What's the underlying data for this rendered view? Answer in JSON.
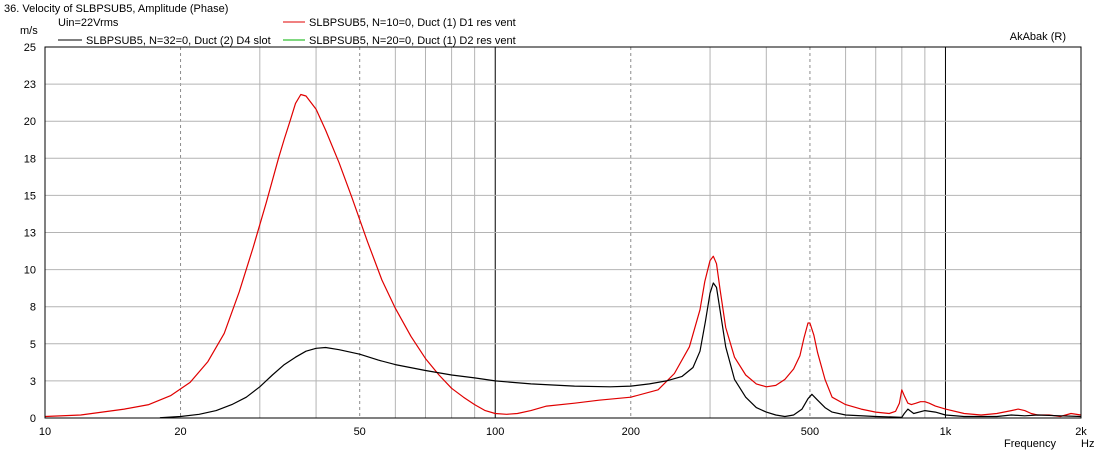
{
  "chart_data": {
    "type": "line",
    "title": "36. Velocity of SLBPSUB5, Amplitude (Phase)",
    "info": "Uin=22Vrms",
    "brand": "AkAbak (R)",
    "ylabel": "m/s",
    "xlabel": "Frequency",
    "xunit": "Hz",
    "x_scale": "log",
    "xlim": [
      10,
      2000
    ],
    "ylim": [
      0,
      25
    ],
    "grid": true,
    "legend_position": "top-left",
    "x_ticks": [
      {
        "value": 10,
        "label": "10"
      },
      {
        "value": 20,
        "label": "20"
      },
      {
        "value": 50,
        "label": "50"
      },
      {
        "value": 100,
        "label": "100"
      },
      {
        "value": 200,
        "label": "200"
      },
      {
        "value": 500,
        "label": "500"
      },
      {
        "value": 1000,
        "label": "1k"
      },
      {
        "value": 2000,
        "label": "2k"
      }
    ],
    "y_ticks": [
      {
        "value": 0,
        "label": "0"
      },
      {
        "value": 2.5,
        "label": "3"
      },
      {
        "value": 5,
        "label": "5"
      },
      {
        "value": 7.5,
        "label": "8"
      },
      {
        "value": 10,
        "label": "10"
      },
      {
        "value": 12.5,
        "label": "13"
      },
      {
        "value": 15,
        "label": "15"
      },
      {
        "value": 17.5,
        "label": "18"
      },
      {
        "value": 20,
        "label": "20"
      },
      {
        "value": 22.5,
        "label": "23"
      },
      {
        "value": 25,
        "label": "25"
      }
    ],
    "series": [
      {
        "name": "SLBPSUB5, N=10=0, Duct (1) D1 res vent",
        "color": "#e00000",
        "x": [
          10,
          12,
          15,
          17,
          19,
          21,
          23,
          25,
          27,
          29,
          31,
          33,
          34,
          35,
          36,
          37,
          38,
          40,
          42,
          45,
          48,
          52,
          56,
          60,
          65,
          70,
          75,
          80,
          85,
          90,
          95,
          100,
          106,
          112,
          120,
          130,
          150,
          170,
          200,
          230,
          250,
          270,
          285,
          292,
          300,
          305,
          310,
          316,
          325,
          340,
          360,
          380,
          400,
          420,
          440,
          460,
          475,
          485,
          495,
          500,
          510,
          520,
          540,
          560,
          600,
          650,
          700,
          750,
          775,
          790,
          800,
          810,
          825,
          840,
          860,
          880,
          900,
          920,
          950,
          1000,
          1100,
          1200,
          1300,
          1400,
          1450,
          1500,
          1550,
          1600,
          1700,
          1800,
          1900,
          2000
        ],
        "y": [
          0.1,
          0.2,
          0.6,
          0.9,
          1.5,
          2.4,
          3.8,
          5.7,
          8.5,
          11.5,
          14.5,
          17.5,
          18.8,
          20.0,
          21.2,
          21.8,
          21.7,
          20.8,
          19.4,
          17.2,
          14.9,
          11.9,
          9.3,
          7.4,
          5.5,
          4.0,
          2.9,
          2.0,
          1.4,
          0.9,
          0.5,
          0.3,
          0.25,
          0.3,
          0.5,
          0.8,
          1.0,
          1.2,
          1.4,
          1.9,
          3.0,
          4.8,
          7.3,
          9.2,
          10.6,
          10.9,
          10.4,
          8.6,
          6.1,
          4.1,
          2.9,
          2.3,
          2.1,
          2.2,
          2.6,
          3.3,
          4.2,
          5.4,
          6.4,
          6.4,
          5.6,
          4.4,
          2.6,
          1.4,
          0.9,
          0.6,
          0.4,
          0.3,
          0.45,
          1.0,
          1.9,
          1.5,
          1.0,
          0.9,
          1.0,
          1.1,
          1.1,
          1.0,
          0.8,
          0.6,
          0.3,
          0.2,
          0.3,
          0.5,
          0.6,
          0.5,
          0.3,
          0.2,
          0.2,
          0.1,
          0.3,
          0.2
        ]
      },
      {
        "name": "SLBPSUB5, N=32=0, Duct (2) D4 slot",
        "color": "#000000",
        "x": [
          18,
          20,
          22,
          24,
          26,
          28,
          30,
          32,
          34,
          36,
          38,
          40,
          42,
          45,
          50,
          55,
          60,
          70,
          80,
          90,
          100,
          120,
          150,
          180,
          200,
          220,
          240,
          260,
          275,
          285,
          293,
          300,
          305,
          310,
          316,
          325,
          340,
          360,
          380,
          400,
          420,
          440,
          460,
          480,
          495,
          505,
          520,
          540,
          560,
          600,
          700,
          800,
          810,
          825,
          850,
          900,
          950,
          1000,
          1100,
          1300,
          1400,
          1500,
          1600,
          1800,
          2000
        ],
        "y": [
          0.02,
          0.1,
          0.25,
          0.5,
          0.9,
          1.4,
          2.1,
          2.9,
          3.6,
          4.1,
          4.5,
          4.7,
          4.75,
          4.6,
          4.3,
          3.9,
          3.6,
          3.2,
          2.9,
          2.7,
          2.5,
          2.3,
          2.15,
          2.1,
          2.15,
          2.3,
          2.5,
          2.8,
          3.4,
          4.5,
          6.5,
          8.4,
          9.1,
          8.8,
          7.2,
          4.8,
          2.6,
          1.4,
          0.7,
          0.4,
          0.2,
          0.1,
          0.2,
          0.6,
          1.3,
          1.6,
          1.2,
          0.7,
          0.4,
          0.2,
          0.1,
          0.05,
          0.3,
          0.6,
          0.3,
          0.5,
          0.4,
          0.2,
          0.1,
          0.1,
          0.2,
          0.15,
          0.2,
          0.15,
          0.1
        ]
      },
      {
        "name": "SLBPSUB5, N=20=0, Duct (1) D2 res vent",
        "color": "#00b000",
        "x": [],
        "y": []
      }
    ]
  }
}
